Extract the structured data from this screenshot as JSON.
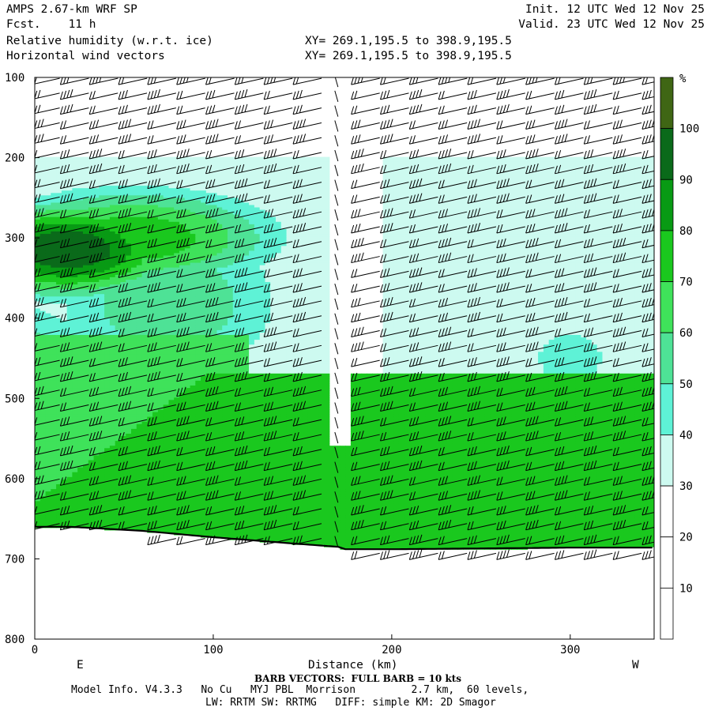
{
  "header": {
    "model": "AMPS 2.67-km WRF SP",
    "fcst_label": "Fcst.",
    "fcst_value": "11 h",
    "field1": "Relative humidity (w.r.t. ice)",
    "field2": "Horizontal wind vectors",
    "xy1": "XY= 269.1,195.5 to 398.9,195.5",
    "xy2": "XY= 269.1,195.5 to 398.9,195.5",
    "init": "Init. 12 UTC Wed 12 Nov 25",
    "valid": "Valid. 23 UTC Wed 12 Nov 25"
  },
  "footer": {
    "barb_note": "BARB VECTORS:  FULL BARB = 10 kts",
    "model_info": "Model Info. V4.3.3   No Cu   MYJ PBL  Morrison         2.7 km,  60 levels,",
    "physics": "LW: RRTM SW: RRTMG   DIFF: simple KM: 2D Smagor"
  },
  "colors": {
    "rh_bins": [
      "#ffffff",
      "#ffffff",
      "#ffffff",
      "#cdfaf0",
      "#5ef2d6",
      "#4ee296",
      "#3fe25a",
      "#1ac81e",
      "#089a14",
      "#0a6a1a",
      "#3f6614"
    ],
    "terrain_line": "#000000"
  },
  "chart_data": {
    "type": "heatmap",
    "title": "Relative humidity (w.r.t. ice)",
    "xlabel": "Distance (km)",
    "ylabel": "",
    "x_range": [
      0,
      347
    ],
    "y_range": [
      100,
      800
    ],
    "y_inverted": true,
    "x_ticks": [
      0,
      100,
      200,
      300
    ],
    "y_ticks": [
      100,
      200,
      300,
      400,
      500,
      600,
      700,
      800
    ],
    "left_end_label": "E",
    "right_end_label": "W",
    "colorbar": {
      "unit": "%",
      "levels": [
        10,
        20,
        30,
        40,
        50,
        60,
        70,
        80,
        90,
        100
      ]
    },
    "terrain": {
      "x": [
        0,
        20,
        60,
        100,
        140,
        170,
        174,
        200,
        250,
        300,
        347
      ],
      "p": [
        660,
        660,
        665,
        673,
        680,
        685,
        688,
        688,
        687,
        686,
        686
      ]
    },
    "wind_barb_note": "FULL BARB = 10 kts"
  }
}
